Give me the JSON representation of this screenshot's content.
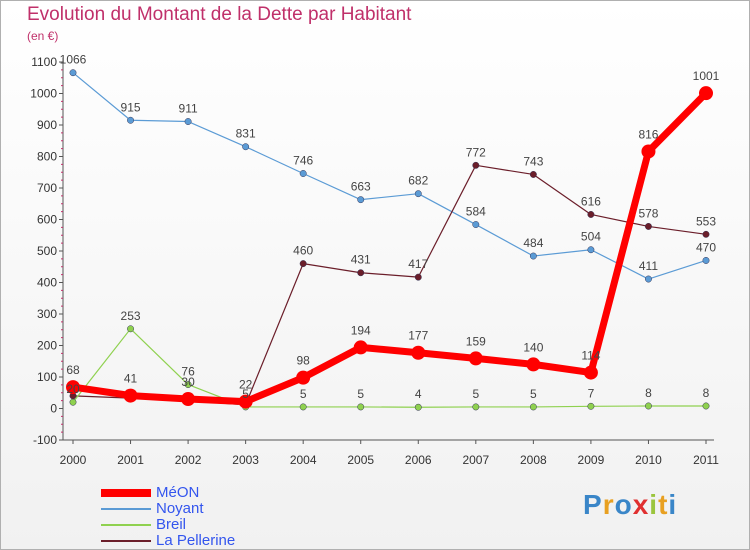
{
  "title": "Evolution du Montant de la Dette par Habitant",
  "subtitle": "(en €)",
  "brand": {
    "text": "Proxiti",
    "letter_colors": [
      "#3a86c8",
      "#e8a021",
      "#3a86c8",
      "#e03030",
      "#9bc53d",
      "#e8a021",
      "#3a86c8"
    ]
  },
  "chart_data": {
    "type": "line",
    "categories": [
      "2000",
      "2001",
      "2002",
      "2003",
      "2004",
      "2005",
      "2006",
      "2007",
      "2008",
      "2009",
      "2010",
      "2011"
    ],
    "ylim": [
      -100,
      1100
    ],
    "yticks": [
      "-100",
      "0",
      "100",
      "200",
      "300",
      "400",
      "500",
      "600",
      "700",
      "800",
      "900",
      "1000",
      "1100"
    ],
    "xlabel": "",
    "ylabel": "",
    "grid": false,
    "legend_position": "bottom-left",
    "series": [
      {
        "name": "Noyant",
        "color": "#5b9bd5",
        "width": 1.2,
        "marker": 3.2,
        "values": [
          1066,
          915,
          911,
          831,
          746,
          663,
          682,
          584,
          484,
          504,
          411,
          470
        ]
      },
      {
        "name": "La Pellerine",
        "color": "#6b1e2a",
        "width": 1.2,
        "marker": 3.2,
        "values": [
          40,
          33,
          24,
          12,
          460,
          431,
          417,
          772,
          743,
          616,
          578,
          553
        ]
      },
      {
        "name": "Breil",
        "color": "#8fd14f",
        "width": 1.2,
        "marker": 3.2,
        "values": [
          20,
          253,
          76,
          5,
          5,
          5,
          4,
          5,
          5,
          7,
          8,
          8
        ]
      },
      {
        "name": "MéON",
        "color": "#ff0000",
        "width": 7,
        "marker": 7,
        "values": [
          68,
          41,
          30,
          22,
          98,
          194,
          177,
          159,
          140,
          114,
          816,
          1001
        ]
      }
    ],
    "data_labels": [
      {
        "series": "Noyant",
        "labels": [
          "1066",
          "915",
          "911",
          "831",
          "746",
          "663",
          "682",
          "584",
          "484",
          "504",
          "411",
          "470"
        ]
      },
      {
        "series": "La Pellerine",
        "labels": [
          "",
          "",
          "",
          "",
          "460",
          "431",
          "417",
          "772",
          "743",
          "616",
          "578",
          "553"
        ]
      },
      {
        "series": "Breil",
        "labels": [
          "20",
          "253",
          "76",
          "5",
          "5",
          "5",
          "4",
          "5",
          "5",
          "7",
          "8",
          "8"
        ]
      },
      {
        "series": "MéON",
        "labels": [
          "68",
          "41",
          "30",
          "22",
          "98",
          "194",
          "177",
          "159",
          "140",
          "114",
          "816",
          "1001"
        ]
      }
    ],
    "legend_order": [
      "MéON",
      "Noyant",
      "Breil",
      "La Pellerine"
    ]
  }
}
